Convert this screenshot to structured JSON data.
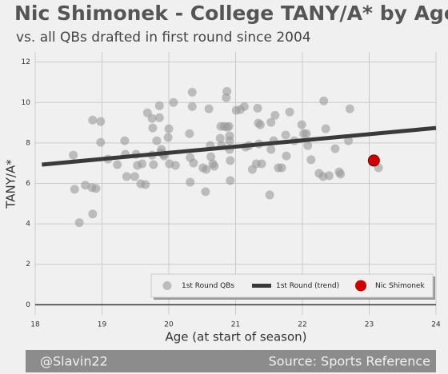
{
  "chart_data": {
    "type": "scatter",
    "title": "Nic Shimonek - College TANY/A* by Age",
    "subtitle": "vs. all QBs drafted in first round since 2004",
    "x_label": "Age (at start of season)",
    "y_label": "TANY/A*",
    "xlim": [
      18,
      24
    ],
    "ylim": [
      -0.5,
      12.5
    ],
    "xticks": [
      18,
      19,
      20,
      21,
      22,
      23,
      24
    ],
    "yticks": [
      0,
      2,
      4,
      6,
      8,
      10,
      12
    ],
    "grid": true,
    "legend": "lower right",
    "footer": {
      "left": "@Slavin22",
      "right": "Source: Sports Reference"
    },
    "series": [
      {
        "name": "1st Round QBs",
        "color": "#999999",
        "mark": "point",
        "x": [
          18.57,
          18.59,
          18.66,
          18.75,
          18.85,
          18.86,
          18.91,
          18.86,
          18.98,
          18.98,
          19.09,
          19.23,
          19.34,
          19.35,
          19.37,
          19.49,
          19.51,
          19.53,
          19.58,
          19.6,
          19.65,
          19.68,
          19.75,
          19.75,
          19.76,
          19.77,
          19.82,
          19.86,
          19.86,
          19.88,
          19.89,
          19.92,
          19.93,
          19.99,
          20.0,
          20.01,
          20.07,
          20.1,
          20.32,
          20.31,
          20.35,
          20.35,
          20.32,
          20.37,
          20.51,
          20.55,
          20.56,
          20.6,
          20.62,
          20.63,
          20.66,
          20.68,
          20.78,
          20.79,
          20.77,
          20.83,
          20.87,
          20.87,
          20.86,
          20.9,
          20.92,
          20.91,
          20.91,
          20.91,
          20.92,
          21.01,
          21.07,
          21.13,
          21.15,
          21.2,
          21.25,
          21.31,
          21.33,
          21.34,
          21.37,
          21.39,
          21.35,
          21.53,
          21.53,
          21.59,
          21.64,
          21.69,
          21.75,
          21.76,
          21.51,
          21.57,
          21.81,
          21.88,
          21.99,
          22.02,
          22.06,
          22.08,
          22.13,
          22.25,
          22.31,
          22.32,
          22.35,
          22.4,
          22.49,
          22.55,
          22.57,
          22.71,
          22.69,
          23.14
        ],
        "values": [
          7.4,
          5.71,
          4.06,
          5.91,
          5.79,
          4.49,
          5.75,
          9.13,
          9.06,
          8.03,
          7.2,
          6.93,
          8.11,
          7.44,
          6.34,
          6.34,
          7.44,
          6.89,
          5.98,
          6.97,
          5.94,
          9.49,
          7.4,
          9.21,
          8.74,
          6.93,
          8.11,
          9.84,
          9.25,
          7.52,
          7.68,
          7.44,
          7.36,
          8.27,
          8.7,
          6.97,
          10.0,
          6.89,
          7.28,
          8.46,
          10.51,
          9.8,
          6.06,
          7.01,
          6.77,
          5.59,
          6.69,
          9.69,
          7.87,
          7.32,
          6.97,
          6.85,
          8.82,
          7.87,
          8.23,
          8.82,
          8.78,
          10.55,
          10.24,
          8.82,
          6.14,
          8.11,
          8.35,
          7.68,
          7.13,
          9.61,
          9.65,
          9.8,
          7.8,
          7.87,
          6.69,
          6.97,
          9.72,
          8.98,
          8.9,
          6.97,
          7.95,
          9.02,
          7.68,
          9.37,
          6.77,
          6.77,
          8.39,
          7.36,
          5.43,
          8.11,
          9.53,
          8.11,
          8.9,
          8.46,
          8.46,
          7.87,
          7.17,
          6.5,
          6.34,
          10.08,
          8.7,
          6.38,
          7.72,
          6.57,
          6.46,
          9.69,
          8.11,
          6.77
        ]
      },
      {
        "name": "1st Round (trend)",
        "color": "#3a3a3a",
        "mark": "line",
        "x": [
          18.1,
          24
        ],
        "values": [
          6.93,
          8.74
        ]
      },
      {
        "name": "Nic Shimonek",
        "color": "#cc0000",
        "mark": "point",
        "x": [
          23.07
        ],
        "values": [
          7.13
        ]
      }
    ]
  }
}
